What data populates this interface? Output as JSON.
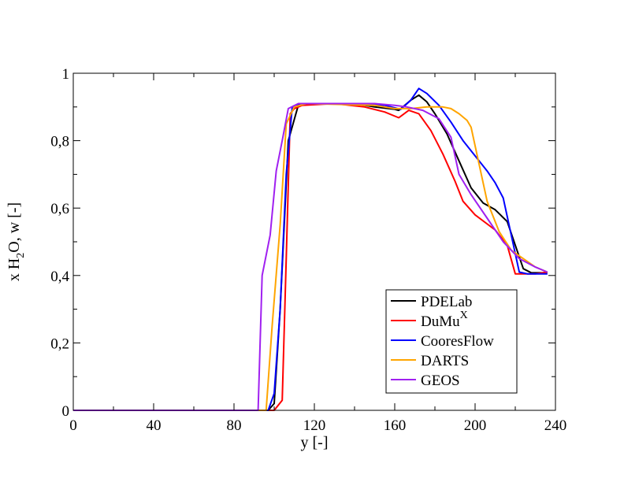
{
  "chart_data": {
    "type": "line",
    "title": "",
    "xlabel": "y [-]",
    "ylabel": {
      "prefix": "x H",
      "sub": "2",
      "suffix": "O, w [-]"
    },
    "xlim": [
      0,
      240
    ],
    "ylim": [
      0,
      1
    ],
    "xticks": [
      0,
      40,
      80,
      120,
      160,
      200,
      240
    ],
    "yticks": [
      0,
      0.2,
      0.4,
      0.6,
      0.8,
      1
    ],
    "xtick_labels": [
      "0",
      "40",
      "80",
      "120",
      "160",
      "200",
      "240"
    ],
    "ytick_labels": [
      "0",
      "0,2",
      "0,4",
      "0,6",
      "0,8",
      "1"
    ],
    "grid": false,
    "legend_position": "bottom-right",
    "series": [
      {
        "name": "PDELab",
        "label": {
          "main": "PDELab",
          "sup": ""
        },
        "color": "#000000",
        "points": [
          [
            0,
            0
          ],
          [
            97,
            0
          ],
          [
            100,
            0.02
          ],
          [
            103,
            0.3
          ],
          [
            107,
            0.8
          ],
          [
            112,
            0.905
          ],
          [
            120,
            0.91
          ],
          [
            140,
            0.91
          ],
          [
            150,
            0.9
          ],
          [
            160,
            0.893
          ],
          [
            162,
            0.89
          ],
          [
            168,
            0.92
          ],
          [
            172,
            0.935
          ],
          [
            176,
            0.915
          ],
          [
            180,
            0.88
          ],
          [
            186,
            0.82
          ],
          [
            192,
            0.74
          ],
          [
            198,
            0.66
          ],
          [
            204,
            0.615
          ],
          [
            210,
            0.595
          ],
          [
            216,
            0.56
          ],
          [
            220,
            0.49
          ],
          [
            224,
            0.42
          ],
          [
            228,
            0.408
          ],
          [
            236,
            0.408
          ]
        ]
      },
      {
        "name": "DuMuX",
        "label": {
          "main": "DuMu",
          "sup": "X"
        },
        "color": "#ff0000",
        "points": [
          [
            0,
            0
          ],
          [
            100,
            0
          ],
          [
            104,
            0.03
          ],
          [
            106,
            0.45
          ],
          [
            108,
            0.88
          ],
          [
            110,
            0.895
          ],
          [
            114,
            0.905
          ],
          [
            130,
            0.91
          ],
          [
            145,
            0.9
          ],
          [
            155,
            0.885
          ],
          [
            162,
            0.868
          ],
          [
            167,
            0.89
          ],
          [
            172,
            0.88
          ],
          [
            178,
            0.83
          ],
          [
            184,
            0.76
          ],
          [
            190,
            0.68
          ],
          [
            194,
            0.62
          ],
          [
            200,
            0.58
          ],
          [
            210,
            0.535
          ],
          [
            216,
            0.49
          ],
          [
            220,
            0.405
          ],
          [
            230,
            0.405
          ],
          [
            236,
            0.41
          ]
        ]
      },
      {
        "name": "CooresFlow",
        "label": {
          "main": "CooresFlow",
          "sup": ""
        },
        "color": "#0000ff",
        "points": [
          [
            0,
            0
          ],
          [
            97,
            0
          ],
          [
            100,
            0.05
          ],
          [
            103,
            0.3
          ],
          [
            106,
            0.7
          ],
          [
            109,
            0.9
          ],
          [
            113,
            0.91
          ],
          [
            140,
            0.91
          ],
          [
            155,
            0.905
          ],
          [
            163,
            0.893
          ],
          [
            168,
            0.92
          ],
          [
            172,
            0.955
          ],
          [
            176,
            0.94
          ],
          [
            182,
            0.905
          ],
          [
            188,
            0.855
          ],
          [
            194,
            0.8
          ],
          [
            200,
            0.755
          ],
          [
            206,
            0.71
          ],
          [
            210,
            0.675
          ],
          [
            214,
            0.63
          ],
          [
            218,
            0.52
          ],
          [
            222,
            0.41
          ],
          [
            226,
            0.405
          ],
          [
            236,
            0.405
          ]
        ]
      },
      {
        "name": "DARTS",
        "label": {
          "main": "DARTS",
          "sup": ""
        },
        "color": "#ffa500",
        "points": [
          [
            0,
            0
          ],
          [
            96,
            0
          ],
          [
            99,
            0.25
          ],
          [
            103,
            0.55
          ],
          [
            106,
            0.85
          ],
          [
            110,
            0.9
          ],
          [
            116,
            0.91
          ],
          [
            150,
            0.905
          ],
          [
            160,
            0.895
          ],
          [
            168,
            0.895
          ],
          [
            176,
            0.9
          ],
          [
            184,
            0.9
          ],
          [
            188,
            0.895
          ],
          [
            192,
            0.88
          ],
          [
            196,
            0.86
          ],
          [
            198,
            0.84
          ],
          [
            202,
            0.73
          ],
          [
            206,
            0.62
          ],
          [
            212,
            0.53
          ],
          [
            218,
            0.475
          ],
          [
            224,
            0.45
          ],
          [
            230,
            0.425
          ],
          [
            236,
            0.41
          ]
        ]
      },
      {
        "name": "GEOS",
        "label": {
          "main": "GEOS",
          "sup": ""
        },
        "color": "#a020f0",
        "points": [
          [
            0,
            0
          ],
          [
            92,
            0
          ],
          [
            94,
            0.4
          ],
          [
            98,
            0.52
          ],
          [
            101,
            0.71
          ],
          [
            104,
            0.8
          ],
          [
            107,
            0.895
          ],
          [
            112,
            0.91
          ],
          [
            140,
            0.91
          ],
          [
            150,
            0.91
          ],
          [
            160,
            0.905
          ],
          [
            166,
            0.9
          ],
          [
            174,
            0.89
          ],
          [
            182,
            0.865
          ],
          [
            188,
            0.81
          ],
          [
            192,
            0.7
          ],
          [
            198,
            0.64
          ],
          [
            206,
            0.57
          ],
          [
            214,
            0.5
          ],
          [
            222,
            0.45
          ],
          [
            230,
            0.425
          ],
          [
            236,
            0.41
          ]
        ]
      }
    ]
  }
}
